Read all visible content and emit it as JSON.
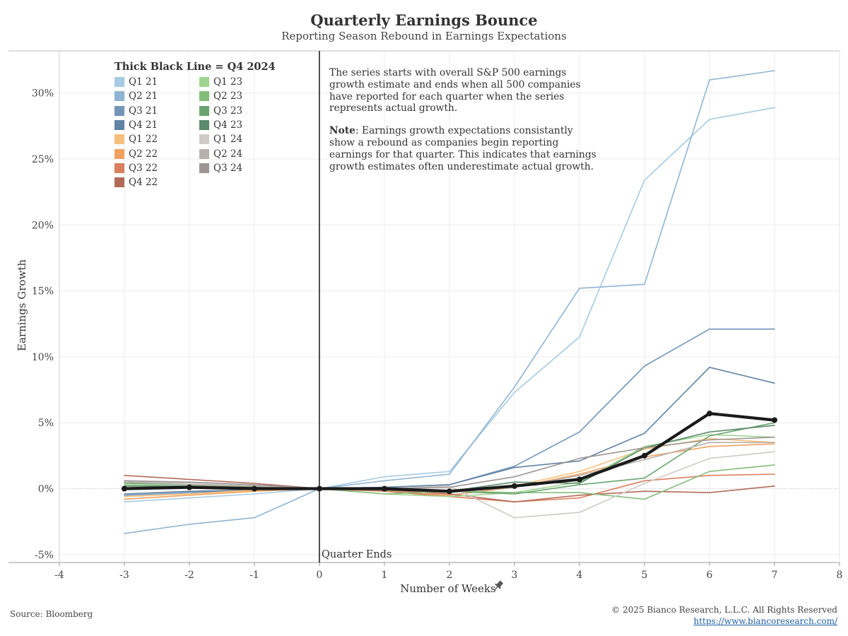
{
  "title": "Quarterly Earnings Bounce",
  "subtitle": "Reporting Season Rebound in Earnings Expectations",
  "legend_title": "Thick Black Line = Q4 2024",
  "note1": "The series starts with overall S&P 500 earnings growth estimate and ends when all 500 companies have reported for each quarter when the series represents actual growth.",
  "note2_bold": "Note",
  "note2_rest": ": Earnings growth expectations consistantly show a rebound as companies begin reporting earnings for that quarter. This indicates that earnings growth estimates often underestimate actual growth.",
  "source": "Source: Bloomberg",
  "copyright": "© 2025 Bianco Research, L.L.C. All Rights Reserved",
  "url": "https://www.biancoresearch.com/",
  "quarter_ends_label": "Quarter Ends",
  "pin_icon": "pin-icon",
  "chart_data": {
    "type": "line",
    "xlabel": "Number of Weeks",
    "ylabel": "Earnings Growth",
    "xlim": [
      -4,
      8
    ],
    "ylim": [
      -5.6,
      33.2
    ],
    "x_ticks": [
      -4,
      -3,
      -2,
      -1,
      0,
      1,
      2,
      3,
      4,
      5,
      6,
      7,
      8
    ],
    "x_tick_labels": [
      "-4",
      "-3",
      "-2",
      "-1",
      "0",
      "1",
      "2",
      "3",
      "4",
      "5",
      "6",
      "7",
      "8"
    ],
    "y_ticks": [
      -5,
      0,
      5,
      10,
      15,
      20,
      25,
      30
    ],
    "y_tick_labels": [
      "-5%",
      "0%",
      "5%",
      "10%",
      "15%",
      "20%",
      "25%",
      "30%"
    ],
    "grid": true,
    "vertical_marker_x": 0,
    "x": [
      -3,
      -2,
      -1,
      0,
      1,
      2,
      3,
      4,
      5,
      6,
      7
    ],
    "series": [
      {
        "name": "Q1 21",
        "color": "#a6cbe3",
        "values": [
          -1.0,
          -0.7,
          -0.4,
          0,
          0.9,
          1.3,
          7.3,
          11.5,
          23.4,
          28.0,
          28.9
        ]
      },
      {
        "name": "Q2 21",
        "color": "#8fb4d3",
        "values": [
          -3.4,
          -2.7,
          -2.2,
          0,
          0.6,
          1.1,
          7.7,
          15.2,
          15.5,
          31.0,
          31.7
        ]
      },
      {
        "name": "Q3 21",
        "color": "#7395b8",
        "values": [
          -0.5,
          -0.3,
          -0.1,
          0,
          0.1,
          0.3,
          1.7,
          4.3,
          9.3,
          12.1,
          12.1
        ]
      },
      {
        "name": "Q4 21",
        "color": "#6182a4",
        "values": [
          -0.4,
          -0.2,
          -0.1,
          0,
          0.1,
          0.3,
          1.6,
          2.1,
          4.2,
          9.2,
          8.0
        ]
      },
      {
        "name": "Q1 22",
        "color": "#f5c07d",
        "values": [
          -0.6,
          -0.4,
          -0.1,
          0,
          -0.1,
          -0.3,
          0.2,
          1.3,
          3.0,
          3.8,
          3.5
        ]
      },
      {
        "name": "Q2 22",
        "color": "#f1a15e",
        "values": [
          -0.8,
          -0.5,
          -0.2,
          0,
          -0.2,
          -0.5,
          0.1,
          1.1,
          2.4,
          3.2,
          3.4
        ]
      },
      {
        "name": "Q3 22",
        "color": "#db7f5e",
        "values": [
          0.2,
          0.2,
          0.2,
          0,
          -0.2,
          -0.6,
          -1.0,
          -0.7,
          0.6,
          1.0,
          1.1
        ]
      },
      {
        "name": "Q4 22",
        "color": "#b26b58",
        "values": [
          1.0,
          0.7,
          0.4,
          0,
          -0.1,
          -0.4,
          -1.0,
          -0.5,
          -0.2,
          -0.3,
          0.2
        ]
      },
      {
        "name": "Q1 23",
        "color": "#9fd591",
        "values": [
          0.3,
          0.2,
          0.1,
          0,
          -0.4,
          -0.6,
          -0.3,
          0.5,
          3.2,
          4.1,
          3.9
        ]
      },
      {
        "name": "Q2 23",
        "color": "#84bd7a",
        "values": [
          0.5,
          0.4,
          0.2,
          0,
          -0.4,
          -0.2,
          -0.3,
          -0.3,
          -0.8,
          1.3,
          1.8
        ]
      },
      {
        "name": "Q3 23",
        "color": "#6aa46e",
        "values": [
          0.4,
          0.3,
          0.2,
          0,
          -0.1,
          -0.2,
          -0.4,
          0.3,
          0.8,
          4.0,
          5.0
        ]
      },
      {
        "name": "Q4 23",
        "color": "#5a8a69",
        "values": [
          0.2,
          0.2,
          0.1,
          0,
          -0.1,
          -0.2,
          0.5,
          0.4,
          3.1,
          4.3,
          4.8
        ]
      },
      {
        "name": "Q1 24",
        "color": "#cfcac6",
        "values": [
          0.6,
          0.4,
          0.2,
          0,
          0.0,
          0.2,
          -2.2,
          -1.8,
          0.4,
          2.3,
          2.8
        ]
      },
      {
        "name": "Q2 24",
        "color": "#b7b1ad",
        "values": [
          0.5,
          0.3,
          0.2,
          0,
          0.0,
          -0.3,
          0.1,
          1.0,
          2.2,
          3.5,
          3.5
        ]
      },
      {
        "name": "Q3 24",
        "color": "#9d9594",
        "values": [
          0.6,
          0.5,
          0.3,
          0,
          0.0,
          0.1,
          0.9,
          2.3,
          3.1,
          3.7,
          3.9
        ]
      },
      {
        "name": "Q4 2024",
        "color": "#1a1a1a",
        "thick": true,
        "values": [
          0.0,
          0.1,
          0.0,
          0,
          0.0,
          -0.2,
          0.2,
          0.7,
          2.5,
          5.7,
          5.2
        ]
      }
    ]
  }
}
